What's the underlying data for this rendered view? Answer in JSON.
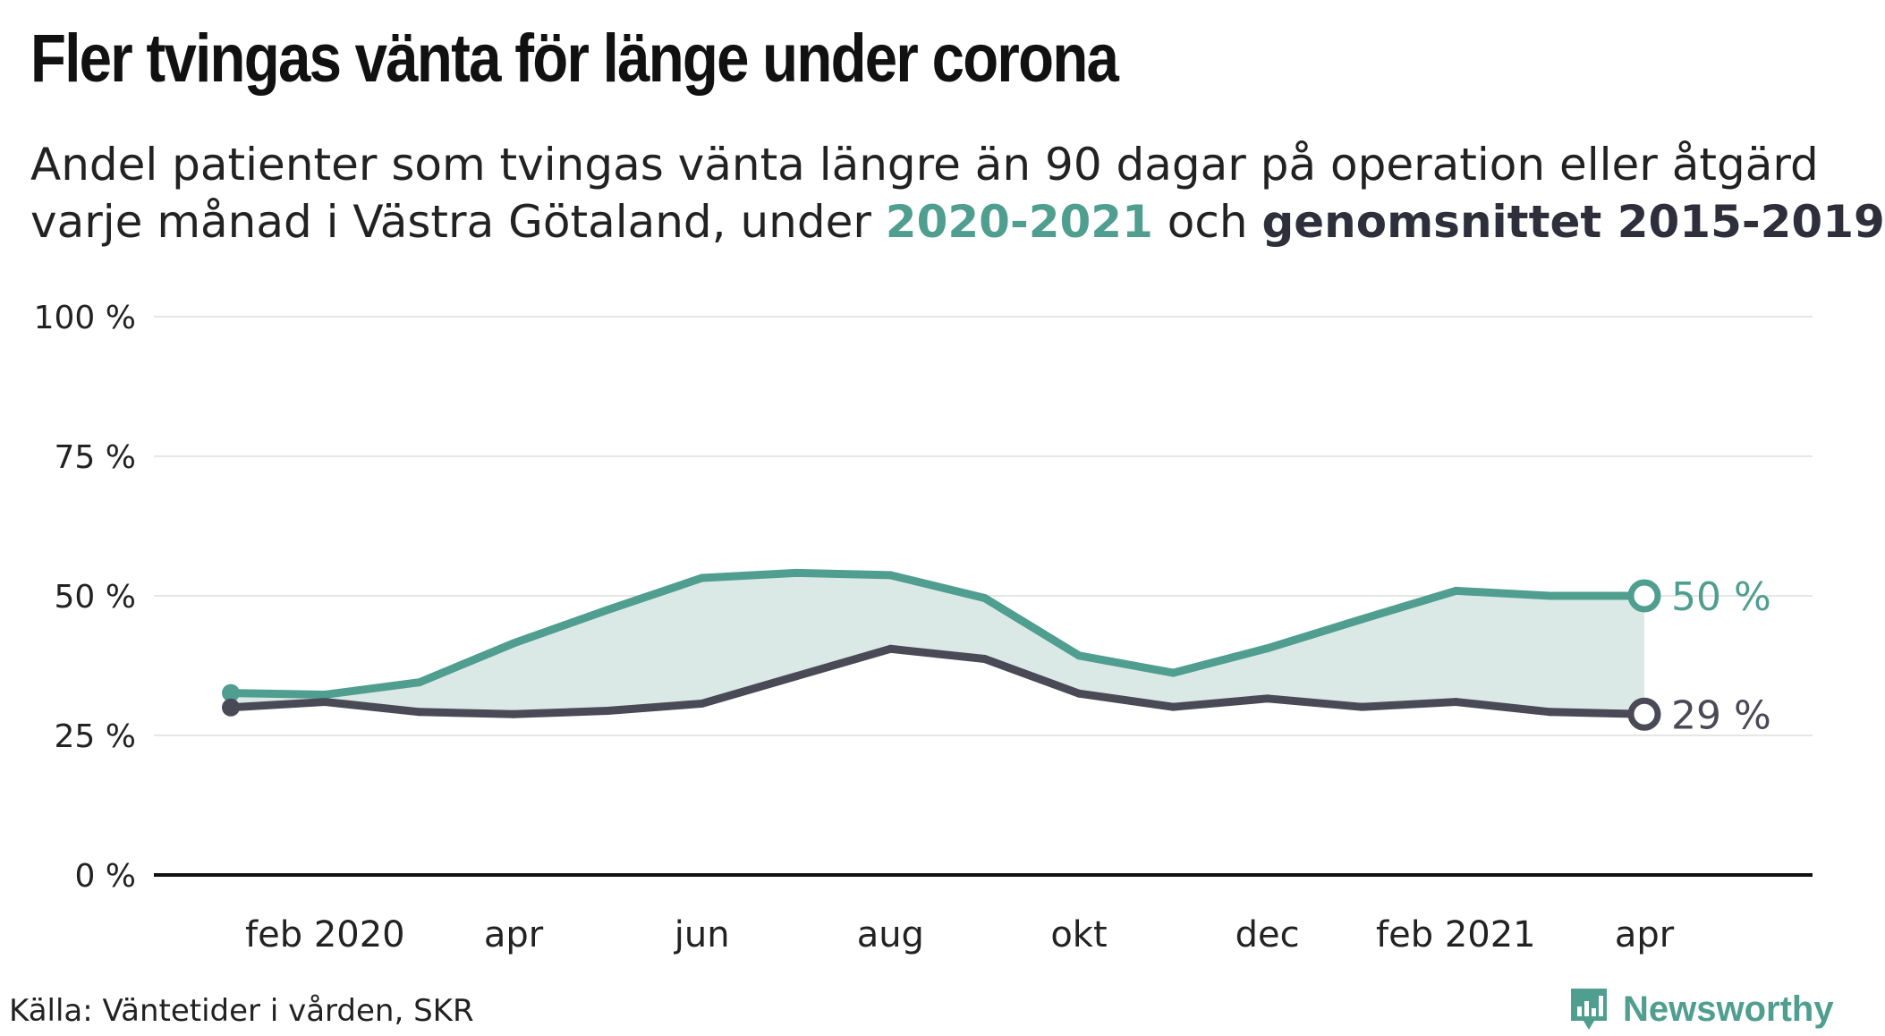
{
  "title": "Fler tvingas vänta för länge under corona",
  "subtitle": {
    "line1": "Andel patienter som tvingas vänta längre än 90 dagar på operation eller åtgärd",
    "line2_prefix": "varje månad i Västra Götaland, under ",
    "highlight_a": "2020-2021",
    "middle": " och ",
    "highlight_b": "genomsnittet 2015-2019"
  },
  "source": "Källa: Väntetider i vården, SKR",
  "brand": "Newsworthy",
  "colors": {
    "series_2020_2021": "#4f9e8f",
    "series_average": "#4a4a57",
    "fill": "#dbe9e6",
    "grid": "#e6e6e6",
    "axis": "#111111"
  },
  "chart_data": {
    "type": "area",
    "ylim": [
      0,
      100
    ],
    "yticks": [
      0,
      25,
      50,
      75,
      100
    ],
    "ytick_labels": [
      "0 %",
      "25 %",
      "50 %",
      "75 %",
      "100 %"
    ],
    "x": [
      "2020-01",
      "2020-02",
      "2020-03",
      "2020-04",
      "2020-05",
      "2020-06",
      "2020-07",
      "2020-08",
      "2020-09",
      "2020-10",
      "2020-11",
      "2020-12",
      "2021-01",
      "2021-02",
      "2021-03",
      "2021-04"
    ],
    "xtick_labels": [
      {
        "label": "feb 2020",
        "index": 1
      },
      {
        "label": "apr",
        "index": 3
      },
      {
        "label": "jun",
        "index": 5
      },
      {
        "label": "aug",
        "index": 7
      },
      {
        "label": "okt",
        "index": 9
      },
      {
        "label": "dec",
        "index": 11
      },
      {
        "label": "feb 2021",
        "index": 13
      },
      {
        "label": "apr",
        "index": 15
      }
    ],
    "series": [
      {
        "key": "2020-2021",
        "values": [
          32.6,
          32.3,
          34.5,
          41.5,
          47.5,
          53.2,
          54.1,
          53.7,
          49.6,
          39.3,
          36.2,
          40.6,
          45.8,
          50.9,
          50.0,
          50.0
        ],
        "end_label": "50 %"
      },
      {
        "key": "genomsnittet 2015-2019",
        "values": [
          30.0,
          31.0,
          29.2,
          28.8,
          29.4,
          30.7,
          35.6,
          40.5,
          38.7,
          32.5,
          30.1,
          31.6,
          30.1,
          31.0,
          29.2,
          28.8
        ],
        "end_label": "29 %"
      }
    ]
  }
}
